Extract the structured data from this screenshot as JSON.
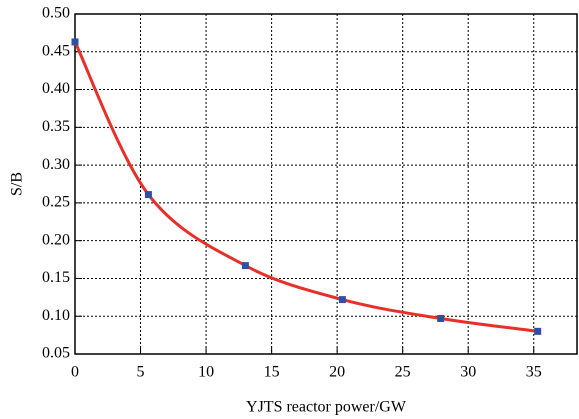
{
  "chart_data": {
    "type": "line",
    "x_label": "YJTS reactor power/GW",
    "y_label": "S/B",
    "x": [
      0,
      5.6,
      13.0,
      20.4,
      27.9,
      35.3
    ],
    "series": [
      {
        "color": "#e8302a",
        "marker_color": "#2f4fa0",
        "values": [
          0.463,
          0.261,
          0.167,
          0.122,
          0.097,
          0.08
        ]
      }
    ],
    "xlim": [
      0,
      38.3
    ],
    "xticks": [
      0,
      5,
      10,
      15,
      20,
      25,
      30,
      35
    ],
    "ylim": [
      0.05,
      0.5
    ],
    "yticks": [
      {
        "value": 0.05,
        "label": "0.05"
      },
      {
        "value": 0.1,
        "label": "0.10"
      },
      {
        "value": 0.15,
        "label": "0.15"
      },
      {
        "value": 0.2,
        "label": "0.20"
      },
      {
        "value": 0.25,
        "label": "0.25"
      },
      {
        "value": 0.3,
        "label": "0.30"
      },
      {
        "value": 0.35,
        "label": "0.35"
      },
      {
        "value": 0.4,
        "label": "0.40"
      },
      {
        "value": 0.45,
        "label": "0.45"
      },
      {
        "value": 0.5,
        "label": "0.50"
      }
    ],
    "grid": true
  }
}
